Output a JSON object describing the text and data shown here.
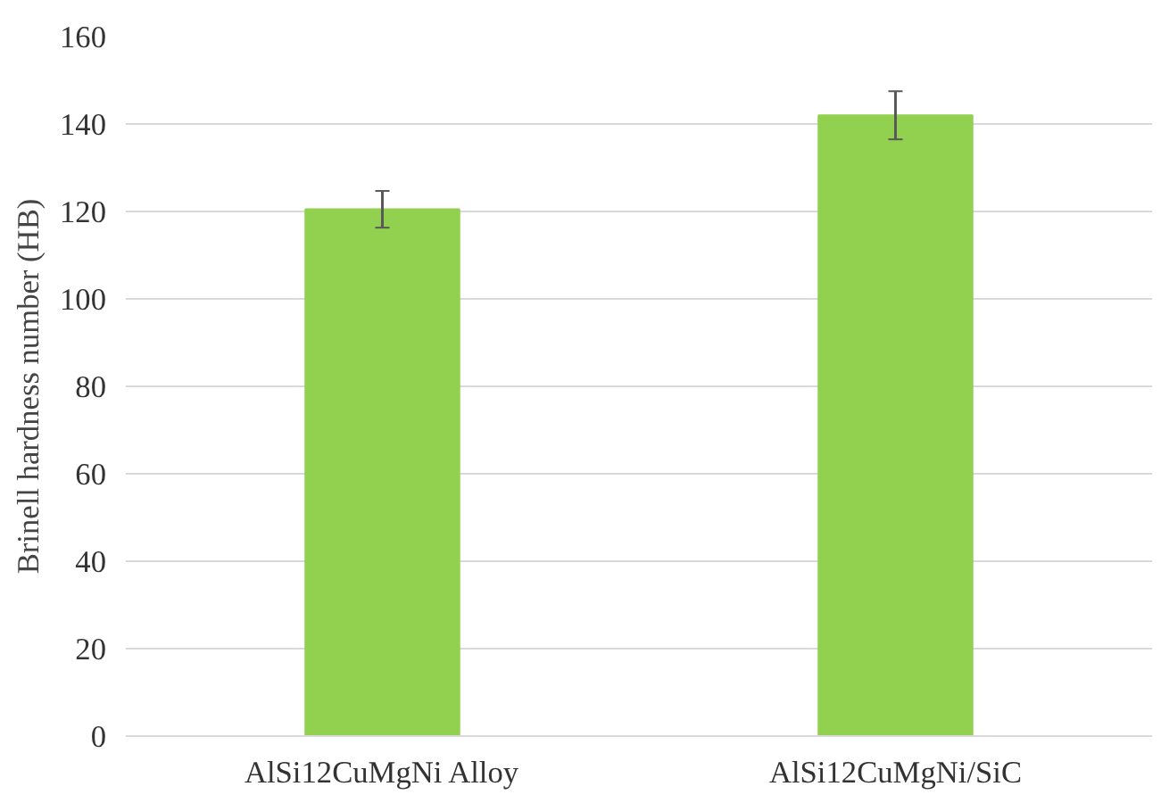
{
  "chart_data": {
    "type": "bar",
    "ylabel": "Brinell hardness number (HB)",
    "categories": [
      "AlSi12CuMgNi Alloy",
      "AlSi12CuMgNi/SiC"
    ],
    "values": [
      120.5,
      142
    ],
    "errors": [
      4.2,
      5.5
    ],
    "colors": [
      "#92d050",
      "#92d050"
    ],
    "ylim": [
      0,
      160
    ],
    "yticks": [
      0,
      20,
      40,
      60,
      80,
      100,
      120,
      140,
      160
    ],
    "grid": "y"
  }
}
